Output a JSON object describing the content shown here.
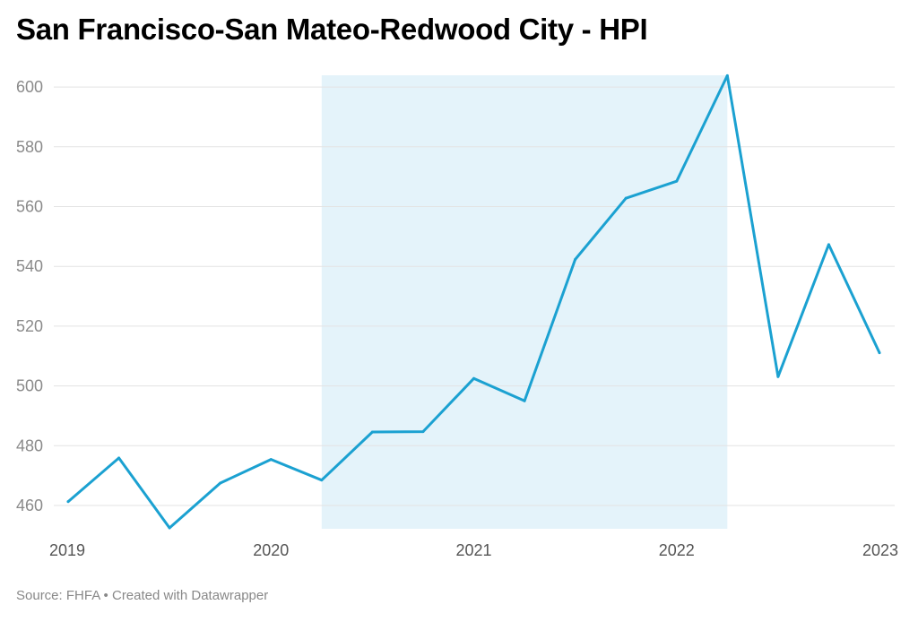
{
  "chart_data": {
    "type": "line",
    "title": "San Francisco-San Mateo-Redwood City - HPI",
    "xlabel": "",
    "ylabel": "",
    "x_ticks": [
      "2019",
      "2020",
      "2021",
      "2022",
      "2023"
    ],
    "y_ticks": [
      460,
      480,
      500,
      520,
      540,
      560,
      580,
      600
    ],
    "xlim": [
      2019.0,
      2023.0
    ],
    "ylim": [
      452,
      604
    ],
    "grid": true,
    "series": [
      {
        "x": [
          2019.0,
          2019.25,
          2019.5,
          2019.75,
          2020.0,
          2020.25,
          2020.5,
          2020.75,
          2021.0,
          2021.25,
          2021.5,
          2021.75,
          2022.0,
          2022.25,
          2022.5,
          2022.75,
          2023.0
        ],
        "values": [
          461.3,
          475.9,
          452.5,
          467.5,
          475.4,
          468.5,
          484.6,
          484.7,
          502.5,
          495.0,
          542.3,
          562.8,
          568.5,
          603.8,
          503.1,
          547.3,
          511.1
        ],
        "color": "#1ba1d1"
      }
    ],
    "highlight_band": {
      "x": [
        2020.25,
        2022.25
      ],
      "color": "#e4f3fa"
    }
  },
  "footer": {
    "source": "Source: FHFA",
    "separator": "•",
    "credit": "Created with Datawrapper"
  }
}
